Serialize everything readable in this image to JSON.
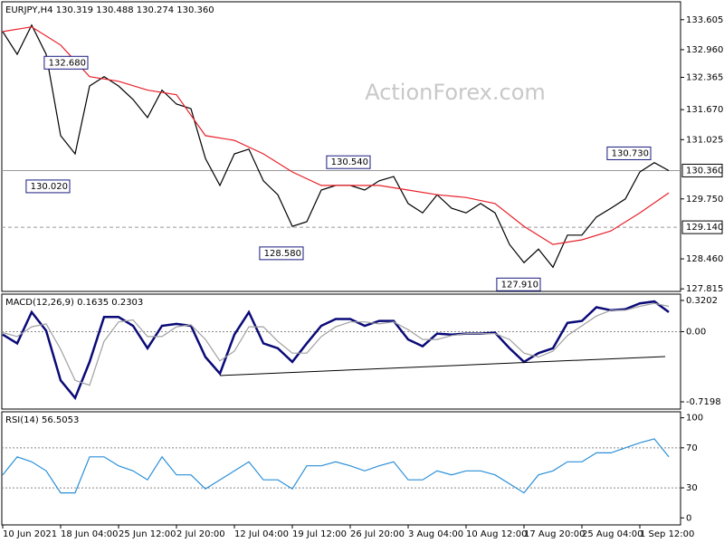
{
  "chart_data": [
    {
      "type": "line",
      "title": "EURJPY,H4 130.319 130.488 130.274 130.360",
      "watermark": "ActionForex.com",
      "x": [
        0,
        8,
        16,
        24,
        32,
        40,
        48,
        56,
        64,
        72,
        80,
        88,
        96,
        104,
        112,
        120,
        128,
        136,
        144,
        152,
        160,
        168,
        176,
        184,
        192,
        200,
        208,
        216,
        224,
        232,
        240,
        248,
        256,
        264,
        272,
        280,
        288,
        296,
        304,
        312,
        320,
        328,
        336,
        344,
        352,
        360,
        368
      ],
      "xlim": [
        0,
        375
      ],
      "xticks": [
        {
          "value": 0,
          "label": "10 Jun 2021"
        },
        {
          "value": 32,
          "label": "18 Jun 04:00"
        },
        {
          "value": 64,
          "label": "25 Jun 12:00"
        },
        {
          "value": 96,
          "label": "2 Jul 20:00"
        },
        {
          "value": 128,
          "label": "12 Jul 04:00"
        },
        {
          "value": 160,
          "label": "19 Jul 12:00"
        },
        {
          "value": 192,
          "label": "26 Jul 20:00"
        },
        {
          "value": 224,
          "label": "3 Aug 04:00"
        },
        {
          "value": 256,
          "label": "10 Aug 12:00"
        },
        {
          "value": 288,
          "label": "17 Aug 20:00"
        },
        {
          "value": 320,
          "label": "25 Aug 04:00"
        },
        {
          "value": 352,
          "label": "1 Sep 12:00"
        }
      ],
      "ylim": [
        127.76,
        133.99
      ],
      "yticks": [
        133.605,
        {
          "value": 132.96,
          "label": "132.960"
        },
        132.365,
        {
          "value": 131.67,
          "label": "131.670"
        },
        131.025,
        {
          "value": 129.75,
          "label": "129.750"
        },
        {
          "value": 128.46,
          "label": "128.460"
        },
        127.815
      ],
      "series": [
        {
          "color": "#000000",
          "values": [
            133.35,
            132.86,
            133.49,
            132.86,
            131.11,
            130.72,
            132.18,
            132.38,
            132.18,
            131.89,
            131.5,
            132.09,
            131.79,
            131.69,
            130.62,
            130.04,
            130.72,
            130.82,
            130.14,
            129.84,
            129.16,
            129.26,
            129.94,
            130.04,
            130.04,
            129.94,
            130.14,
            130.23,
            129.65,
            129.45,
            129.84,
            129.55,
            129.45,
            129.65,
            129.45,
            128.77,
            128.38,
            128.67,
            128.28,
            128.97,
            128.97,
            129.36,
            129.55,
            129.75,
            130.33,
            130.53,
            130.36
          ]
        },
        {
          "color": "#e8202a",
          "x": [
            0,
            16,
            32,
            48,
            64,
            80,
            96,
            112,
            128,
            144,
            160,
            176,
            192,
            208,
            224,
            240,
            256,
            272,
            288,
            304,
            320,
            336,
            352,
            368
          ],
          "values": [
            133.35,
            133.45,
            133.06,
            132.38,
            132.28,
            132.09,
            131.99,
            131.11,
            131.01,
            130.72,
            130.33,
            130.04,
            130.04,
            130.04,
            129.94,
            129.84,
            129.78,
            129.65,
            129.16,
            128.77,
            128.87,
            129.06,
            129.45,
            129.88
          ]
        }
      ],
      "hlines": [
        {
          "value": 130.36,
          "label": "130.360",
          "style": "solid"
        },
        {
          "value": 129.14,
          "label": "129.140",
          "style": "dashed"
        }
      ],
      "annotations": [
        {
          "x": 47,
          "value": 132.68,
          "label": "132.680"
        },
        {
          "x": 37,
          "value": 130.02,
          "label": "130.020"
        },
        {
          "x": 166,
          "value": 128.58,
          "label": "128.580"
        },
        {
          "x": 203,
          "value": 130.54,
          "label": "130.540"
        },
        {
          "x": 297,
          "value": 127.91,
          "label": "127.910"
        },
        {
          "x": 358,
          "value": 130.73,
          "label": "130.730"
        }
      ]
    },
    {
      "type": "line",
      "title": "MACD(12,26,9) 0.1635 0.2303",
      "ylim": [
        -0.794,
        0.385
      ],
      "yticks": [
        0.3202,
        {
          "value": 0,
          "label": "0.00"
        },
        -0.7198
      ],
      "levels": "dotted",
      "series": [
        {
          "color": "#0a0a78",
          "weight": "thick",
          "values": [
            -0.03,
            -0.12,
            0.2,
            0.01,
            -0.5,
            -0.68,
            -0.31,
            0.15,
            0.15,
            0.06,
            -0.17,
            0.06,
            0.08,
            0.06,
            -0.26,
            -0.43,
            -0.03,
            0.2,
            -0.12,
            -0.17,
            -0.31,
            -0.12,
            0.06,
            0.13,
            0.13,
            0.06,
            0.11,
            0.11,
            -0.08,
            -0.15,
            -0.02,
            -0.03,
            -0.02,
            -0.02,
            -0.01,
            -0.17,
            -0.31,
            -0.22,
            -0.17,
            0.09,
            0.11,
            0.25,
            0.22,
            0.23,
            0.29,
            0.31,
            0.2
          ]
        },
        {
          "color": "#a0a0a0",
          "values": [
            -0.01,
            -0.05,
            0.05,
            0.08,
            -0.18,
            -0.5,
            -0.55,
            -0.1,
            0.1,
            0.12,
            -0.05,
            -0.05,
            0.05,
            0.07,
            -0.08,
            -0.3,
            -0.2,
            0.05,
            0.05,
            -0.1,
            -0.22,
            -0.22,
            -0.05,
            0.05,
            0.1,
            0.1,
            0.08,
            0.1,
            0.02,
            -0.08,
            -0.08,
            -0.04,
            -0.02,
            -0.02,
            -0.02,
            -0.08,
            -0.22,
            -0.26,
            -0.2,
            -0.04,
            0.06,
            0.16,
            0.22,
            0.22,
            0.26,
            0.29,
            0.26
          ]
        }
      ],
      "trendline": {
        "x": [
          120,
          366
        ],
        "values": [
          -0.45,
          -0.255
        ],
        "color": "#000000"
      }
    },
    {
      "type": "line",
      "title": "RSI(14) 56.5053",
      "ylim": [
        -7,
        106
      ],
      "yticks": [
        100,
        70,
        30,
        0
      ],
      "levels": "dotted",
      "series": [
        {
          "color": "#2a8fd8",
          "values": [
            43,
            61,
            56,
            47,
            25,
            25,
            61,
            61,
            52,
            47,
            38,
            61,
            43,
            43,
            29,
            38,
            47,
            56,
            38,
            38,
            29,
            52,
            52,
            56,
            52,
            47,
            52,
            56,
            38,
            38,
            47,
            43,
            47,
            47,
            43,
            34,
            25,
            43,
            47,
            56,
            56,
            65,
            65,
            70,
            75,
            79,
            61
          ]
        }
      ]
    }
  ]
}
